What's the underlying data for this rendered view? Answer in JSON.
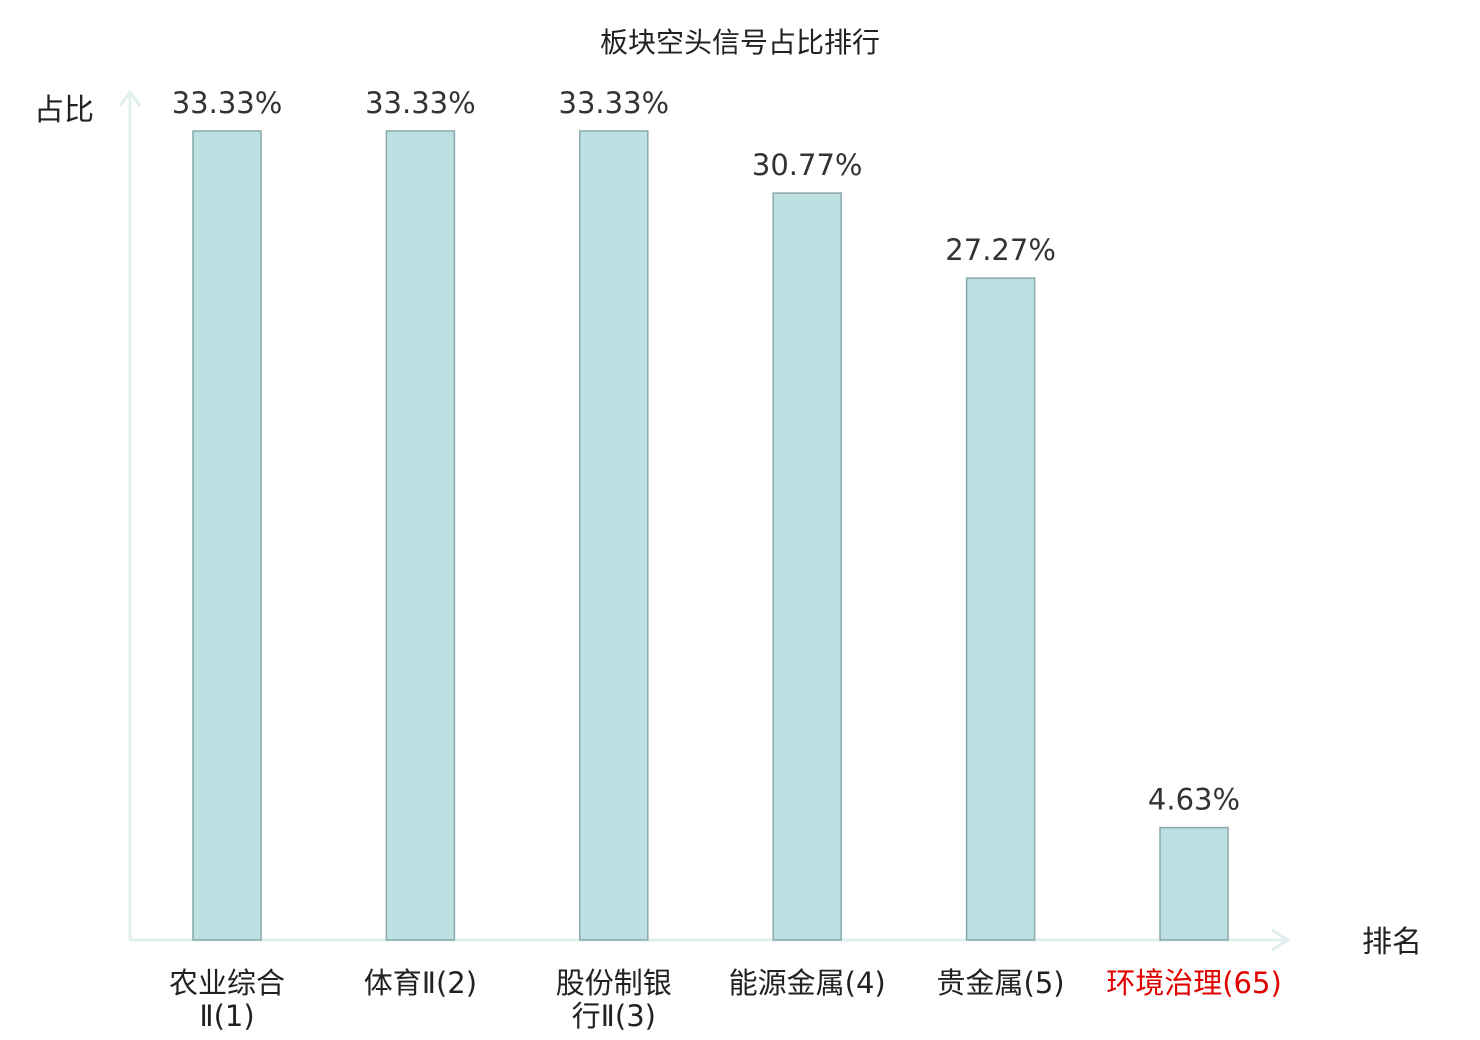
{
  "chart_data": {
    "type": "bar",
    "title": "板块空头信号占比排行",
    "ylabel": "占比",
    "xlabel": "排名",
    "ylim": [
      0,
      35
    ],
    "categories": [
      [
        "农业综合",
        "Ⅱ(1)"
      ],
      [
        "体育Ⅱ(2)"
      ],
      [
        "股份制银",
        "行Ⅱ(3)"
      ],
      [
        "能源金属(4)"
      ],
      [
        "贵金属(5)"
      ],
      [
        "环境治理(65)"
      ]
    ],
    "values": [
      33.33,
      33.33,
      33.33,
      30.77,
      27.27,
      4.63
    ],
    "value_labels": [
      "33.33%",
      "33.33%",
      "33.33%",
      "30.77%",
      "27.27%",
      "4.63%"
    ],
    "highlight_index": 5,
    "colors": {
      "bar_fill": "#bde0e3",
      "bar_stroke": "#8aa9aa",
      "axis": "#dff0ee",
      "highlight_text": "#e00000"
    },
    "grid": false
  }
}
